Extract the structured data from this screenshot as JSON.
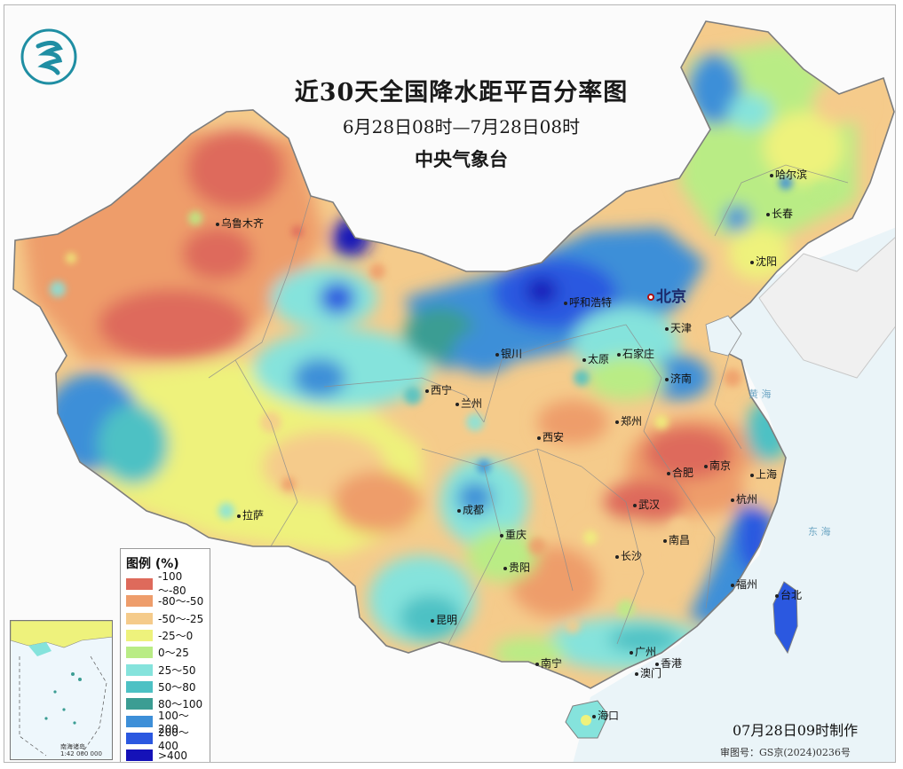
{
  "title": "近30天全国降水距平百分率图",
  "subtitle": "6月28日08时—7月28日08时",
  "organization": "中央气象台",
  "made_time": "07月28日09时制作",
  "review_number": "审图号：GS京(2024)0236号",
  "legend": {
    "title": "图例 (%)",
    "items": [
      {
        "label": "-100～-80",
        "color": "#de6a5b"
      },
      {
        "label": "-80～-50",
        "color": "#ee9d6b"
      },
      {
        "label": "-50～-25",
        "color": "#f5cb8b"
      },
      {
        "label": "-25～0",
        "color": "#eef27c"
      },
      {
        "label": "0～25",
        "color": "#b9ec85"
      },
      {
        "label": "25～50",
        "color": "#85e3dc"
      },
      {
        "label": "50～80",
        "color": "#4dc1c4"
      },
      {
        "label": "80～100",
        "color": "#3b9d93"
      },
      {
        "label": "100～200",
        "color": "#3d8fd8"
      },
      {
        "label": "200～400",
        "color": "#2b58e0"
      },
      {
        "label": ">400",
        "color": "#1512b8"
      }
    ]
  },
  "cities": {
    "beijing": "北京",
    "harbin": "哈尔滨",
    "changchun": "长春",
    "shenyang": "沈阳",
    "tianjin": "天津",
    "hohhot": "呼和浩特",
    "shijiazhuang": "石家庄",
    "taiyuan": "太原",
    "jinan": "济南",
    "yinchuan": "银川",
    "xining": "西宁",
    "lanzhou": "兰州",
    "xian": "西安",
    "zhengzhou": "郑州",
    "hefei": "合肥",
    "nanjing": "南京",
    "shanghai": "上海",
    "hangzhou": "杭州",
    "wuhan": "武汉",
    "nanchang": "南昌",
    "changsha": "长沙",
    "fuzhou": "福州",
    "taipei": "台北",
    "chengdu": "成都",
    "chongqing": "重庆",
    "guiyang": "贵阳",
    "kunming": "昆明",
    "nanning": "南宁",
    "guangzhou": "广州",
    "hongkong": "香港",
    "macau": "澳门",
    "haikou": "海口",
    "lhasa": "拉萨",
    "urumqi": "乌鲁木齐"
  },
  "seas": {
    "yellow_sea": "黄 海",
    "east_sea": "东 海"
  },
  "inset": {
    "label_line1": "南海诸岛",
    "label_line2": "1:42 000 000"
  }
}
